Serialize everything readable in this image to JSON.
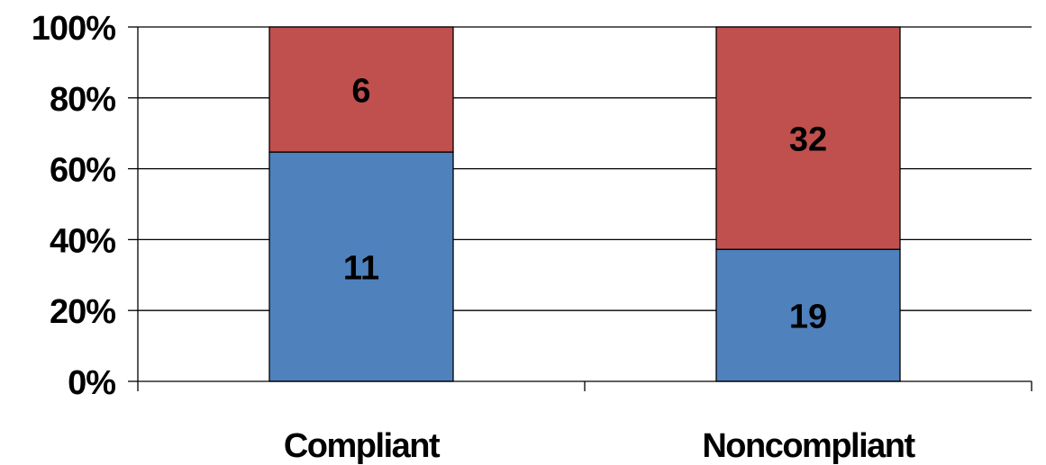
{
  "chart_data": {
    "type": "bar",
    "stacked": true,
    "percent_stacked": true,
    "categories": [
      "Compliant",
      "Noncompliant"
    ],
    "series": [
      {
        "values": [
          11,
          19
        ],
        "color": "#4f81bd"
      },
      {
        "values": [
          6,
          32
        ],
        "color": "#c0504d"
      }
    ],
    "y_ticks": [
      "0%",
      "20%",
      "40%",
      "60%",
      "80%",
      "100%"
    ],
    "ylim": [
      0,
      100
    ],
    "grid": true,
    "legend": "none",
    "title": "",
    "xlabel": "",
    "ylabel": ""
  }
}
